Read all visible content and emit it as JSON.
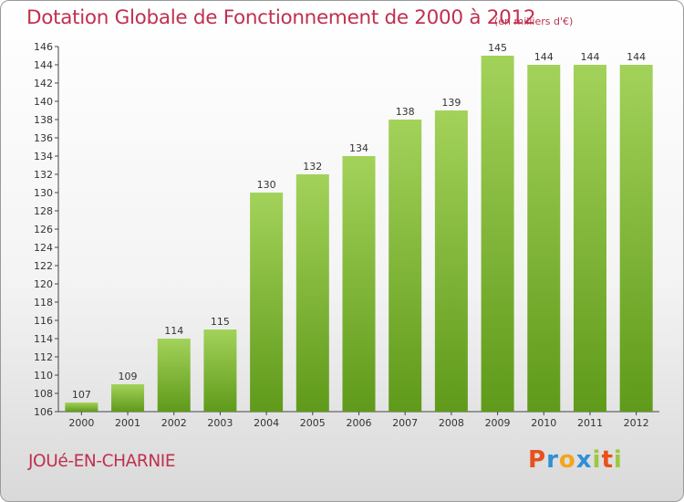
{
  "header": {
    "title": "Dotation Globale de Fonctionnement de 2000 à 2012",
    "unit": "(en milliers d'€)"
  },
  "footer": {
    "commune": "JOUé-EN-CHARNIE",
    "logo_letters": [
      "P",
      "r",
      "o",
      "x",
      "i",
      "t",
      "i"
    ],
    "logo_colors": [
      "#e8501c",
      "#2f8fd6",
      "#f4a51c",
      "#2f8fd6",
      "#9cc83c",
      "#e8501c",
      "#9cc83c"
    ]
  },
  "chart_data": {
    "type": "bar",
    "title": "Dotation Globale de Fonctionnement de 2000 à 2012",
    "subtitle": "(en milliers d'€)",
    "xlabel": "",
    "ylabel": "",
    "categories": [
      "2000",
      "2001",
      "2002",
      "2003",
      "2004",
      "2005",
      "2006",
      "2007",
      "2008",
      "2009",
      "2010",
      "2011",
      "2012"
    ],
    "values": [
      107,
      109,
      114,
      115,
      130,
      132,
      134,
      138,
      139,
      145,
      144,
      144,
      144
    ],
    "ylim": [
      106,
      146
    ],
    "yticks": [
      106,
      108,
      110,
      112,
      114,
      116,
      118,
      120,
      122,
      124,
      126,
      128,
      130,
      132,
      134,
      136,
      138,
      140,
      142,
      144,
      146
    ],
    "grid": false,
    "bar_color_top": "#a3d25a",
    "bar_color_bottom": "#5f9a1a"
  }
}
